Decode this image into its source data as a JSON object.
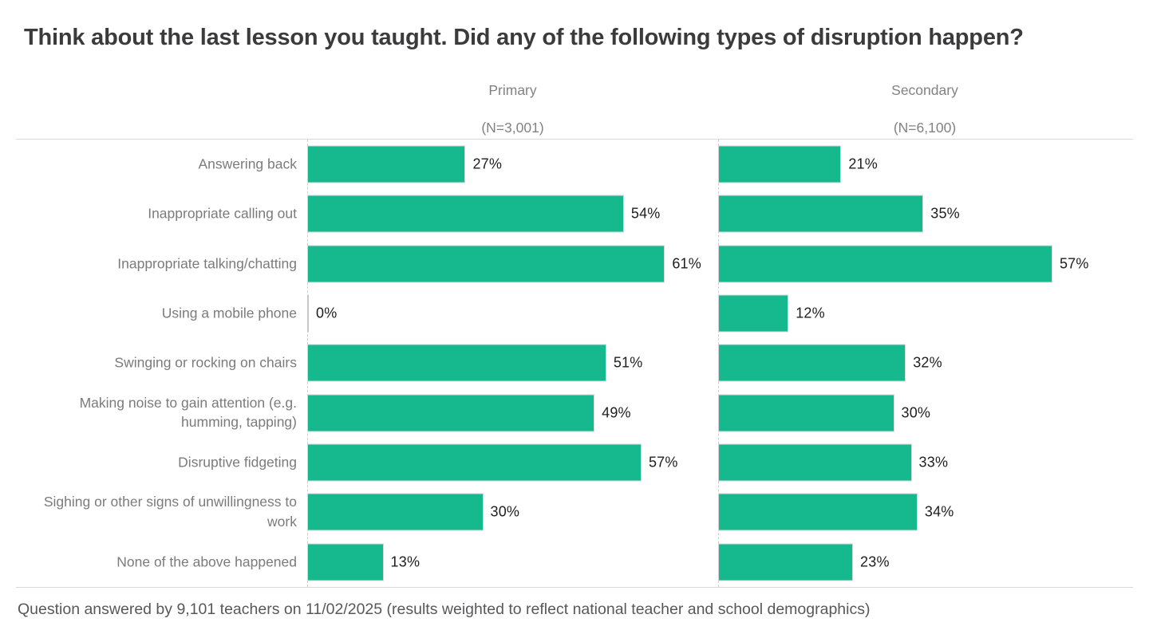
{
  "footer": {
    "note": "Question answered by 9,101 teachers on 11/02/2025 (results weighted to reflect national teacher and school demographics)"
  },
  "colors": {
    "bar": "#16B98D",
    "bar_border": "#d6d6d6",
    "zero_bar": "#c9c9c9"
  },
  "chart_data": {
    "type": "bar",
    "orientation": "horizontal",
    "title": "Think about the last lesson you taught. Did any of the following types of disruption happen?",
    "categories": [
      "Answering back",
      "Inappropriate calling out",
      "Inappropriate talking/chatting",
      "Using a mobile phone",
      "Swinging or rocking on chairs",
      "Making noise to gain attention (e.g. humming, tapping)",
      "Disruptive fidgeting",
      "Sighing or other signs of unwillingness to work",
      "None of the above happened"
    ],
    "series": [
      {
        "name": "Primary",
        "n_label": "(N=3,001)",
        "values": [
          27,
          54,
          61,
          0,
          51,
          49,
          57,
          30,
          13
        ]
      },
      {
        "name": "Secondary",
        "n_label": "(N=6,100)",
        "values": [
          21,
          35,
          57,
          12,
          32,
          30,
          33,
          34,
          23
        ]
      }
    ],
    "value_suffix": "%",
    "xlim": [
      0,
      70
    ],
    "grid": false,
    "legend_position": "column-headers"
  }
}
